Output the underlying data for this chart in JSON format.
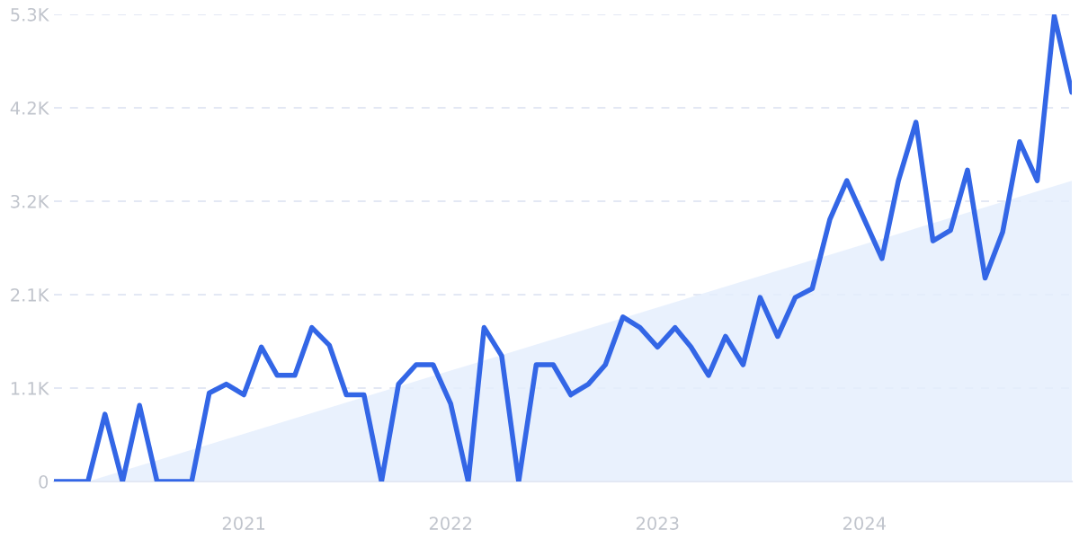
{
  "chart_data": {
    "type": "line",
    "x": [
      "2020-02",
      "2020-03",
      "2020-04",
      "2020-05",
      "2020-06",
      "2020-07",
      "2020-08",
      "2020-09",
      "2020-10",
      "2020-11",
      "2020-12",
      "2021-01",
      "2021-02",
      "2021-03",
      "2021-04",
      "2021-05",
      "2021-06",
      "2021-07",
      "2021-08",
      "2021-09",
      "2021-10",
      "2021-11",
      "2021-12",
      "2022-01",
      "2022-02",
      "2022-03",
      "2022-04",
      "2022-05",
      "2022-06",
      "2022-07",
      "2022-08",
      "2022-09",
      "2022-10",
      "2022-11",
      "2022-12",
      "2023-01",
      "2023-02",
      "2023-03",
      "2023-04",
      "2023-05",
      "2023-06",
      "2023-07",
      "2023-08",
      "2023-09",
      "2023-10",
      "2023-11",
      "2023-12",
      "2024-01",
      "2024-02",
      "2024-03",
      "2024-04",
      "2024-05",
      "2024-06",
      "2024-07",
      "2024-08",
      "2024-09",
      "2024-10",
      "2024-11",
      "2024-12",
      "2025-01"
    ],
    "series": [
      {
        "type": "area",
        "color": "#e3eefc",
        "x": [
          "2020-04",
          "2025-01"
        ],
        "values": [
          0,
          3400
        ]
      },
      {
        "color": "#3366e6",
        "values": [
          0,
          0,
          0,
          760,
          0,
          860,
          0,
          0,
          0,
          1000,
          1100,
          980,
          1520,
          1200,
          1200,
          1740,
          1540,
          980,
          980,
          0,
          1100,
          1320,
          1320,
          880,
          0,
          1740,
          1420,
          0,
          1320,
          1320,
          980,
          1100,
          1320,
          1860,
          1740,
          1520,
          1740,
          1520,
          1200,
          1640,
          1320,
          2080,
          1640,
          2080,
          2180,
          2960,
          3400,
          2960,
          2520,
          3400,
          4060,
          2720,
          2840,
          3520,
          2300,
          2820,
          3840,
          3400,
          5260,
          4400
        ]
      }
    ],
    "xlim": [
      "2020-02",
      "2025-01"
    ],
    "xticks": [
      {
        "value": "2021-01",
        "label": "2021"
      },
      {
        "value": "2022-01",
        "label": "2022"
      },
      {
        "value": "2023-01",
        "label": "2023"
      },
      {
        "value": "2024-01",
        "label": "2024"
      }
    ],
    "ylim": [
      0,
      5280
    ],
    "yticks": [
      0,
      {
        "value": 1056,
        "label": "1.1K"
      },
      {
        "value": 2112,
        "label": "2.1K"
      },
      {
        "value": 3168,
        "label": "3.2K"
      },
      {
        "value": 4224,
        "label": "4.2K"
      },
      {
        "value": 5280,
        "label": "5.3K"
      }
    ],
    "grid": "y",
    "line_style": "solid"
  }
}
